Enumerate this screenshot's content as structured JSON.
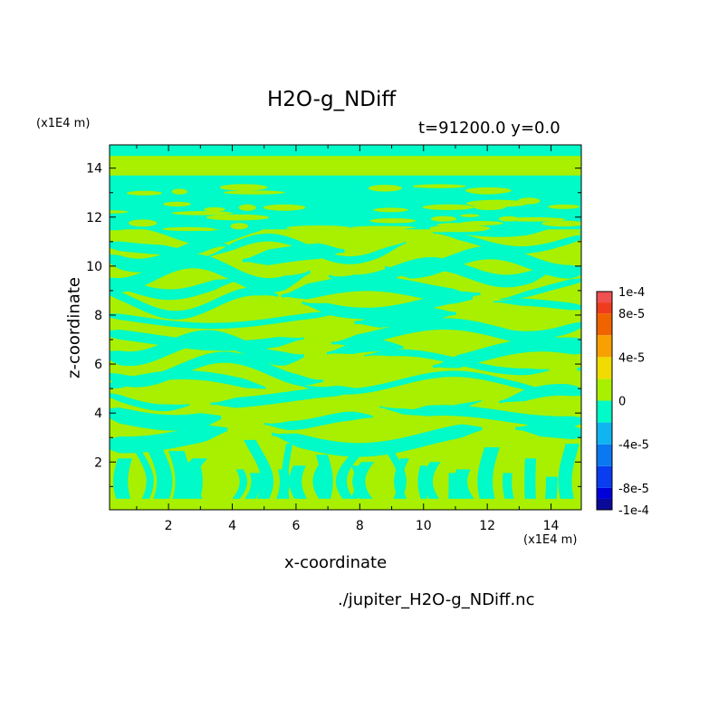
{
  "chart_data": {
    "type": "heatmap",
    "title": "H2O-g_NDiff",
    "subtitle": "t=91200.0 y=0.0",
    "xlabel": "x-coordinate",
    "ylabel": "z-coordinate",
    "x_unit": "(x1E4 m)",
    "y_unit": "(x1E4 m)",
    "xlim": [
      0.15,
      14.95
    ],
    "ylim": [
      0.05,
      14.95
    ],
    "x_ticks": [
      2,
      4,
      6,
      8,
      10,
      12,
      14
    ],
    "y_ticks": [
      2,
      4,
      6,
      8,
      10,
      12,
      14
    ],
    "source_file": "./jupiter_H2O-g_NDiff.nc",
    "colorbar": {
      "levels": [
        {
          "value": -0.0001,
          "color": "#0a0a9a"
        },
        {
          "value": -9e-05,
          "color": "#0000d8"
        },
        {
          "value": -8e-05,
          "color": "#0a3cf0"
        },
        {
          "value": -6e-05,
          "color": "#0a78f0"
        },
        {
          "value": -4e-05,
          "color": "#10b4f0"
        },
        {
          "value": -2e-05,
          "color": "#00fac8"
        },
        {
          "value": 0,
          "color": "#a8f000"
        },
        {
          "value": 2e-05,
          "color": "#f0dc00"
        },
        {
          "value": 4e-05,
          "color": "#f8a000"
        },
        {
          "value": 6e-05,
          "color": "#f06400"
        },
        {
          "value": 8e-05,
          "color": "#f03c1e"
        },
        {
          "value": 9e-05,
          "color": "#f05050"
        }
      ],
      "labels": [
        {
          "text": "1e-4",
          "value": 0.0001
        },
        {
          "text": "8e-5",
          "value": 8e-05
        },
        {
          "text": "4e-5",
          "value": 4e-05
        },
        {
          "text": "0",
          "value": 0
        },
        {
          "text": "-4e-5",
          "value": -4e-05
        },
        {
          "text": "-8e-5",
          "value": -8e-05
        },
        {
          "text": "-1e-4",
          "value": -0.0001
        }
      ]
    },
    "field_colors": {
      "negative_small": "#00fac8",
      "positive_small": "#a8f000"
    },
    "layers": [
      {
        "z": [
          13.7,
          14.5
        ],
        "value": "positive_small"
      },
      {
        "z": [
          14.5,
          14.95
        ],
        "value": "negative_small"
      },
      {
        "z": [
          11.5,
          13.7
        ],
        "value": "negative_small"
      },
      {
        "z": [
          0.05,
          11.5
        ],
        "value": "mixed_streaks"
      }
    ]
  }
}
